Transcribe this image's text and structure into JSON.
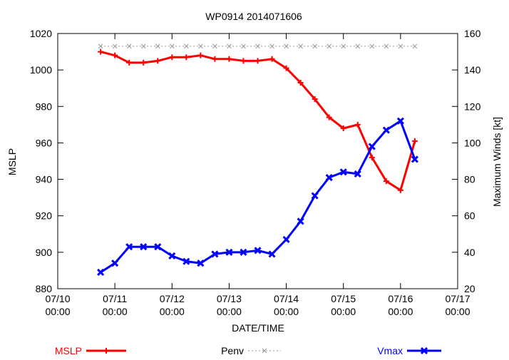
{
  "chart_data": {
    "type": "line",
    "title": "WP0914 2014071606",
    "xlabel": "DATE/TIME",
    "ylabel": "MSLP",
    "y2label": "Maximum Winds [kt]",
    "x_ticks": [
      {
        "date": "07/10",
        "time": "00:00"
      },
      {
        "date": "07/11",
        "time": "00:00"
      },
      {
        "date": "07/12",
        "time": "00:00"
      },
      {
        "date": "07/13",
        "time": "00:00"
      },
      {
        "date": "07/14",
        "time": "00:00"
      },
      {
        "date": "07/15",
        "time": "00:00"
      },
      {
        "date": "07/16",
        "time": "00:00"
      },
      {
        "date": "07/17",
        "time": "00:00"
      }
    ],
    "xlim": [
      "2014-07-10 00:00",
      "2014-07-17 00:00"
    ],
    "ylim": [
      880,
      1020
    ],
    "y_ticks": [
      880,
      900,
      920,
      940,
      960,
      980,
      1000,
      1020
    ],
    "y2lim": [
      20,
      160
    ],
    "y2_ticks": [
      20,
      40,
      60,
      80,
      100,
      120,
      140,
      160
    ],
    "grid": false,
    "legend_position": "bottom",
    "x": [
      "2014-07-10 18:00",
      "2014-07-11 00:00",
      "2014-07-11 06:00",
      "2014-07-11 12:00",
      "2014-07-11 18:00",
      "2014-07-12 00:00",
      "2014-07-12 06:00",
      "2014-07-12 12:00",
      "2014-07-12 18:00",
      "2014-07-13 00:00",
      "2014-07-13 06:00",
      "2014-07-13 12:00",
      "2014-07-13 18:00",
      "2014-07-14 00:00",
      "2014-07-14 06:00",
      "2014-07-14 12:00",
      "2014-07-14 18:00",
      "2014-07-15 00:00",
      "2014-07-15 06:00",
      "2014-07-15 12:00",
      "2014-07-15 18:00",
      "2014-07-16 00:00",
      "2014-07-16 06:00"
    ],
    "series": [
      {
        "name": "MSLP",
        "axis": "left",
        "color": "#ff0000",
        "marker": "plus",
        "values": [
          1010,
          1008,
          1004,
          1004,
          1005,
          1007,
          1007,
          1008,
          1006,
          1006,
          1005,
          1005,
          1006,
          1001,
          993,
          984,
          974,
          968,
          970,
          952,
          939,
          934,
          961
        ]
      },
      {
        "name": "Penv",
        "axis": "left",
        "color": "#999999",
        "marker": "cross",
        "dashed": true,
        "values": [
          1013,
          1013,
          1013,
          1013,
          1013,
          1013,
          1013,
          1013,
          1013,
          1013,
          1013,
          1013,
          1013,
          1013,
          1013,
          1013,
          1013,
          1013,
          1013,
          1013,
          1013,
          1013,
          1013
        ]
      },
      {
        "name": "Vmax",
        "axis": "right",
        "color": "#0000ff",
        "marker": "filled-x",
        "values": [
          29,
          34,
          43,
          43,
          43,
          38,
          35,
          34,
          39,
          40,
          40,
          41,
          39,
          47,
          57,
          71,
          81,
          84,
          83,
          98,
          107,
          112,
          91
        ]
      }
    ]
  }
}
